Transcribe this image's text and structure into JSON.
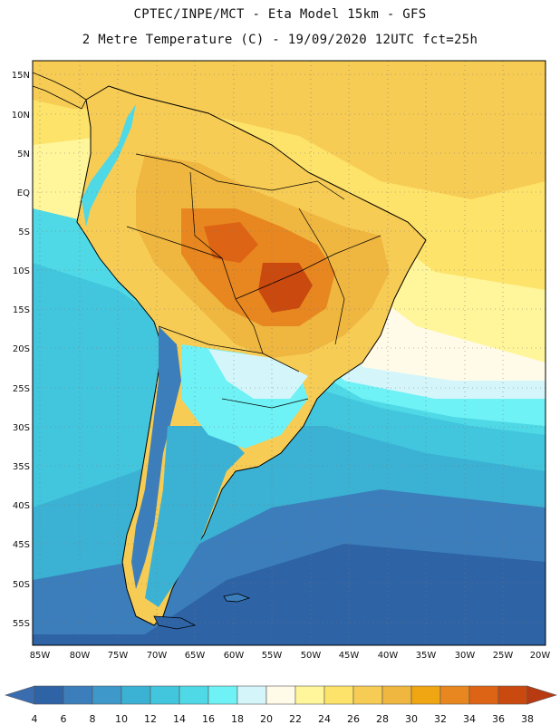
{
  "header": {
    "title_line_1": "CPTEC/INPE/MCT -  Eta Model 15km - GFS",
    "title_line_2": "2 Metre Temperature (C) - 19/09/2020 12UTC fct=25h"
  },
  "map": {
    "lat_labels": [
      "15N",
      "10N",
      "5N",
      "EQ",
      "5S",
      "10S",
      "15S",
      "20S",
      "25S",
      "30S",
      "35S",
      "40S",
      "45S",
      "50S",
      "55S"
    ],
    "lon_labels": [
      "85W",
      "80W",
      "75W",
      "70W",
      "65W",
      "60W",
      "55W",
      "50W",
      "45W",
      "40W",
      "35W",
      "30W",
      "25W",
      "20W"
    ],
    "lat_range": [
      15,
      -57
    ],
    "lon_range": [
      -85,
      -20
    ]
  },
  "colorbar": {
    "labels": [
      "4",
      "6",
      "8",
      "10",
      "12",
      "14",
      "16",
      "18",
      "20",
      "22",
      "24",
      "26",
      "28",
      "30",
      "32",
      "34",
      "36",
      "38"
    ],
    "colors": [
      "#3a6cb0",
      "#2e63a6",
      "#3b7ebb",
      "#3e98c9",
      "#3bb2d4",
      "#42c6de",
      "#4fd8e6",
      "#6ff2f5",
      "#d4f6fb",
      "#fffbe8",
      "#fff59a",
      "#fde36a",
      "#f7cc55",
      "#efb640",
      "#f0a512",
      "#e8871f",
      "#dd6414",
      "#c9490e",
      "#b83a10"
    ]
  },
  "sea_colors": {
    "north_atlantic": "#f3c84e",
    "tropical_pacific": "#fdf5b0",
    "subtropical_atlantic": "#fbe57a",
    "cyan_band": "#6ff2f5",
    "light_cyan": "#4fd8e6",
    "mid_blue": "#3bb2d4",
    "deep_blue": "#2e63a6"
  }
}
